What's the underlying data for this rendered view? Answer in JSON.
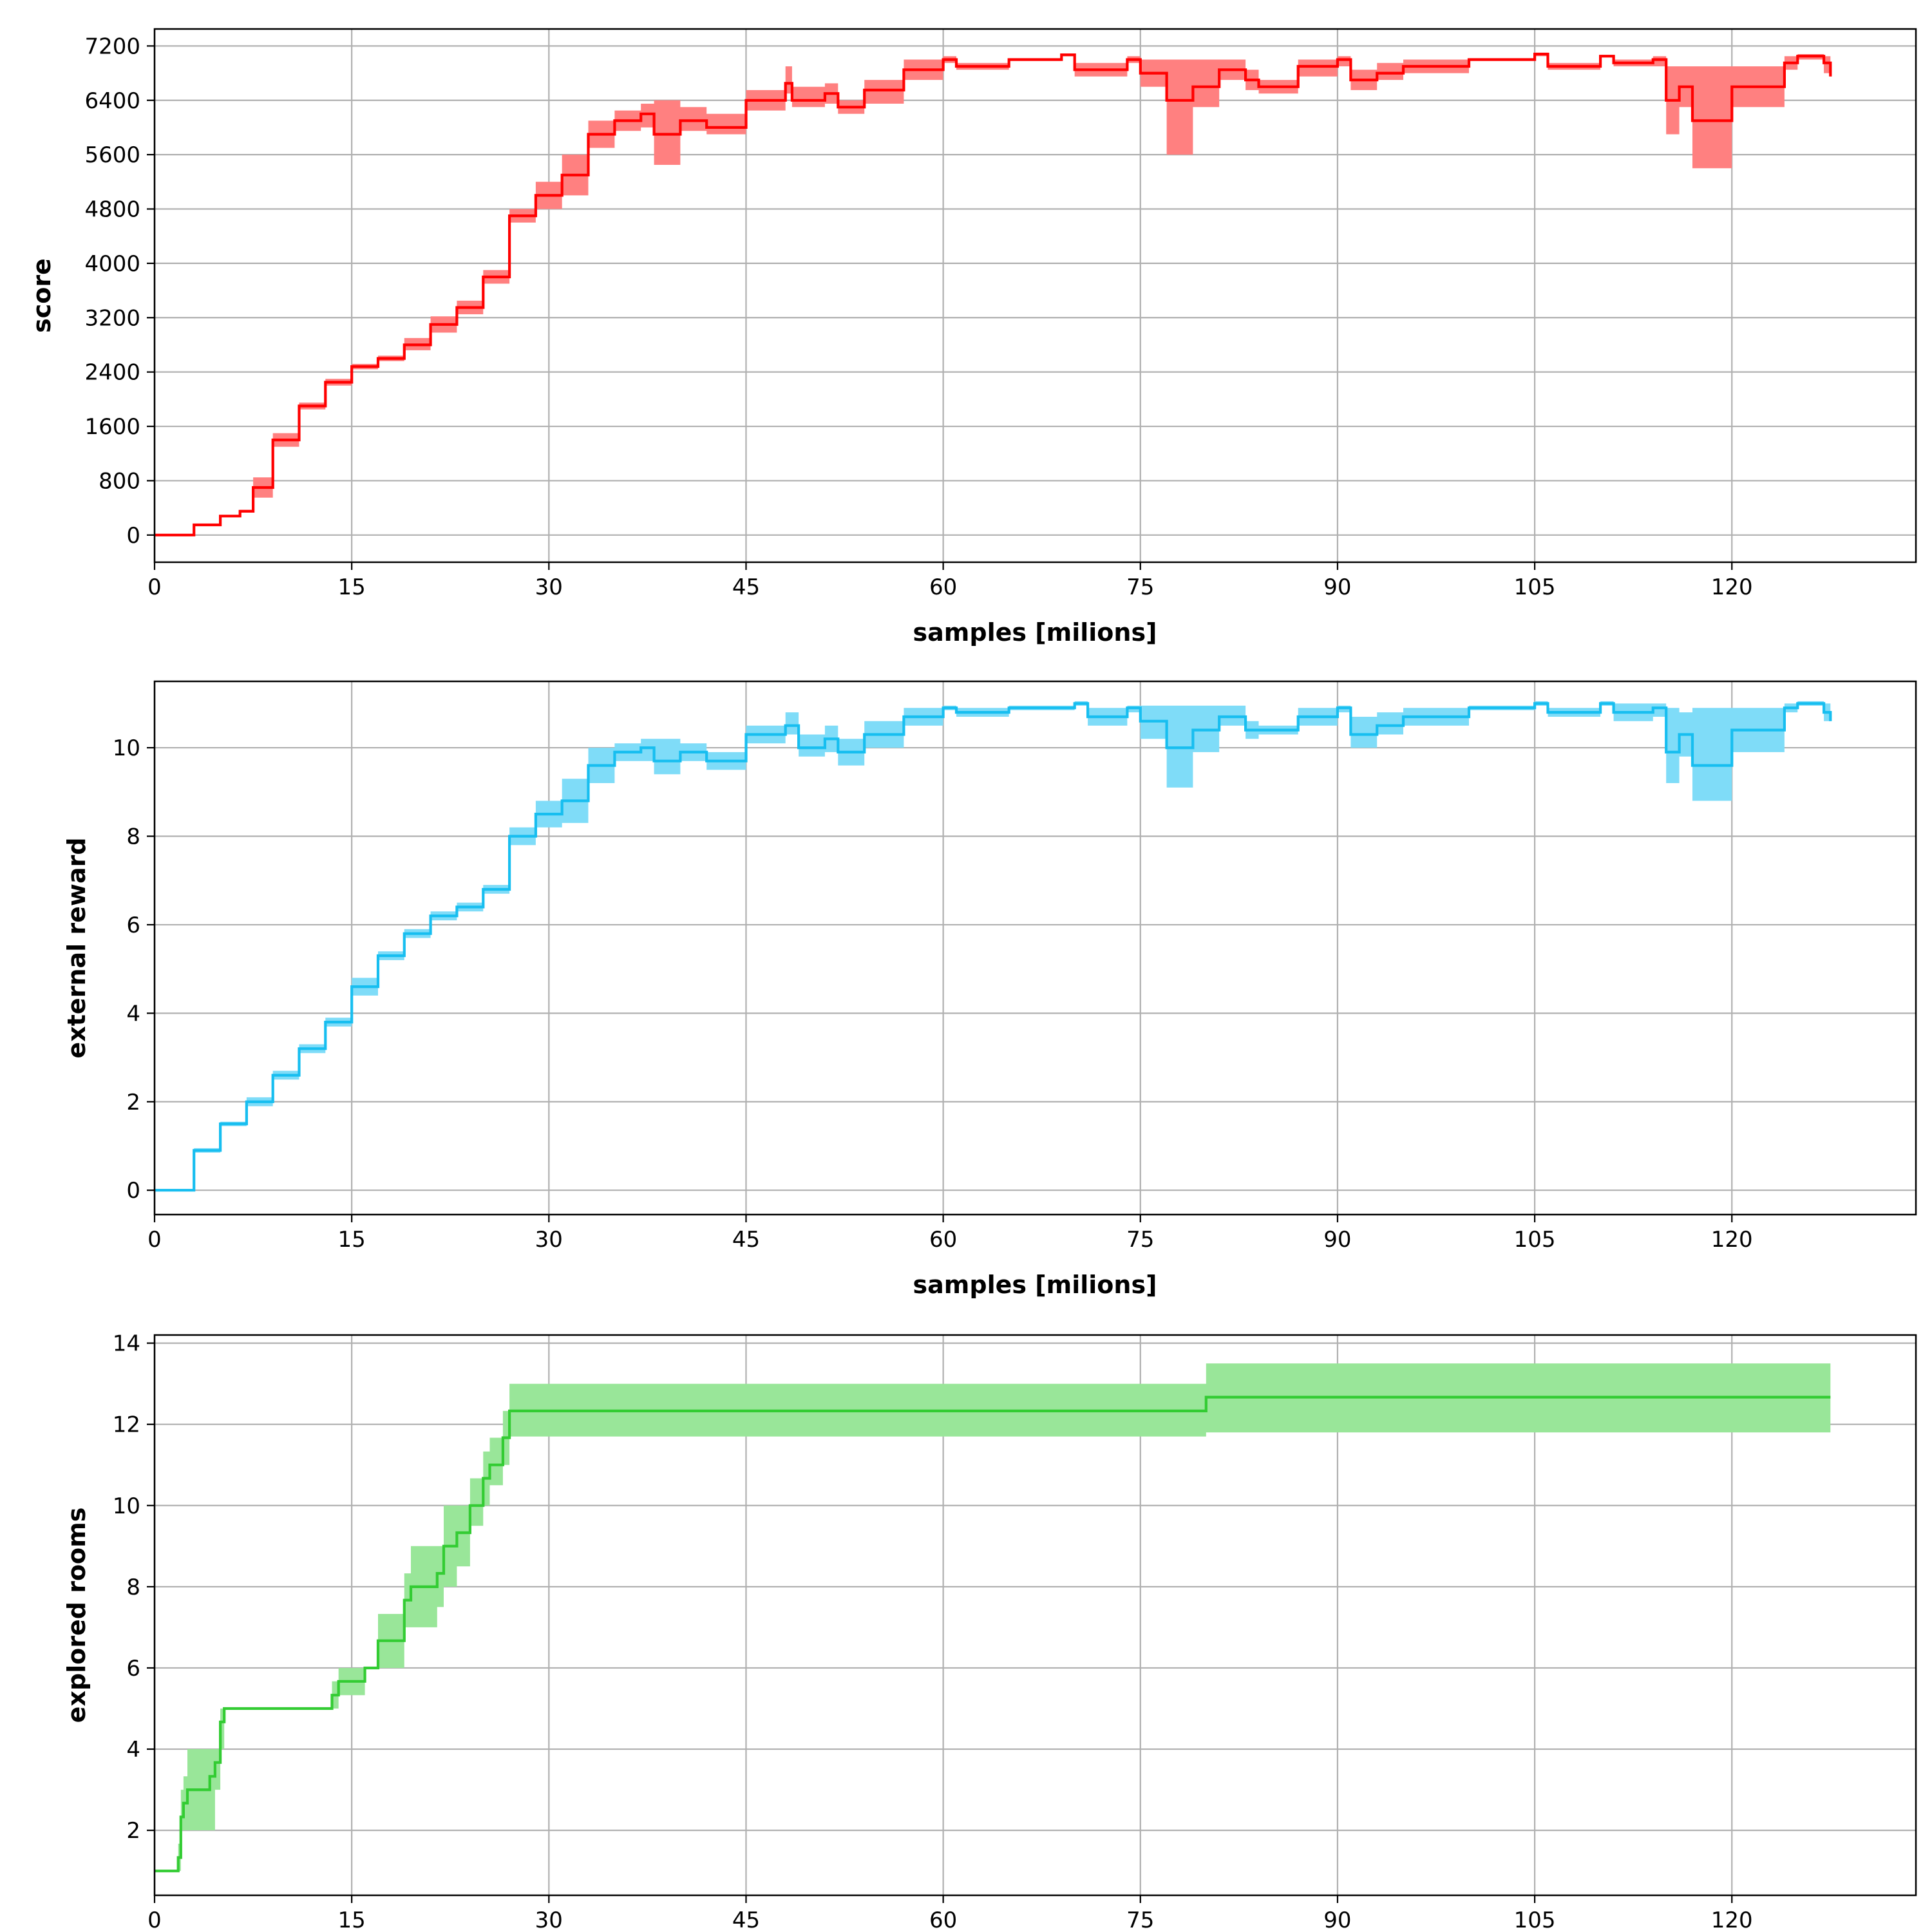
{
  "chart_data": [
    {
      "type": "line",
      "xlabel": "samples [milions]",
      "ylabel": "score",
      "xlim": [
        0,
        134
      ],
      "ylim": [
        -400,
        7450
      ],
      "xticks": [
        0,
        15,
        30,
        45,
        60,
        75,
        90,
        105,
        120
      ],
      "yticks": [
        0,
        800,
        1600,
        2400,
        3200,
        4000,
        4800,
        5600,
        6400,
        7200
      ],
      "grid": true,
      "color": "#ff0000",
      "band_color": "#ff8080",
      "series": [
        {
          "x": [
            0,
            1.5,
            3,
            5,
            6.5,
            7.5,
            9,
            11,
            13,
            15,
            17,
            19,
            21,
            23,
            25,
            27,
            29,
            31,
            33,
            35,
            37,
            38,
            40,
            42,
            45,
            48,
            48.5,
            51,
            52,
            54,
            57,
            60,
            61,
            65,
            69,
            70,
            74,
            75,
            77,
            79,
            81,
            83,
            84,
            87,
            90,
            91,
            93,
            95,
            100,
            105,
            106,
            110,
            111,
            114,
            115,
            116,
            117,
            120,
            124,
            125,
            127,
            127.5
          ],
          "y": [
            0,
            0,
            150,
            280,
            350,
            700,
            1400,
            1900,
            2250,
            2480,
            2600,
            2800,
            3100,
            3350,
            3800,
            4700,
            5000,
            5300,
            5900,
            6100,
            6200,
            5900,
            6100,
            6000,
            6400,
            6650,
            6400,
            6500,
            6300,
            6550,
            6850,
            7000,
            6900,
            7000,
            7070,
            6850,
            7000,
            6800,
            6400,
            6600,
            6850,
            6700,
            6600,
            6900,
            7000,
            6700,
            6800,
            6900,
            7000,
            7080,
            6900,
            7050,
            6950,
            7000,
            6400,
            6600,
            6100,
            6600,
            6950,
            7050,
            6950,
            6750
          ],
          "lower": [
            0,
            0,
            140,
            270,
            330,
            550,
            1300,
            1850,
            2200,
            2440,
            2560,
            2720,
            2980,
            3250,
            3700,
            4600,
            4800,
            5000,
            5700,
            5950,
            6000,
            5450,
            5950,
            5900,
            6250,
            6500,
            6300,
            6350,
            6200,
            6350,
            6700,
            6950,
            6850,
            6980,
            7050,
            6750,
            6950,
            6600,
            5600,
            6300,
            6700,
            6550,
            6500,
            6750,
            6900,
            6550,
            6700,
            6800,
            6980,
            7050,
            6850,
            7030,
            6900,
            6900,
            5900,
            6300,
            5400,
            6300,
            6850,
            7000,
            6800,
            6650
          ],
          "upper": [
            0,
            0,
            160,
            290,
            370,
            850,
            1500,
            1950,
            2300,
            2520,
            2640,
            2900,
            3220,
            3450,
            3900,
            4800,
            5200,
            5600,
            6100,
            6250,
            6350,
            6400,
            6300,
            6200,
            6550,
            6900,
            6600,
            6650,
            6400,
            6700,
            7000,
            7050,
            6950,
            7020,
            7090,
            6950,
            7050,
            7000,
            7000,
            7000,
            7000,
            6850,
            6700,
            7000,
            7050,
            6850,
            6950,
            7000,
            7020,
            7100,
            6950,
            7070,
            7000,
            7050,
            6900,
            6900,
            6900,
            6900,
            7050,
            7080,
            7050,
            6850
          ]
        }
      ]
    },
    {
      "type": "line",
      "xlabel": "samples [milions]",
      "ylabel": "external reward",
      "xlim": [
        0,
        134
      ],
      "ylim": [
        -0.55,
        11.5
      ],
      "xticks": [
        0,
        15,
        30,
        45,
        60,
        75,
        90,
        105,
        120
      ],
      "yticks": [
        0,
        2,
        4,
        6,
        8,
        10
      ],
      "grid": true,
      "color": "#17bef0",
      "band_color": "#7fdcf8",
      "series": [
        {
          "x": [
            0,
            1.5,
            3,
            5,
            7,
            9,
            11,
            13,
            15,
            17,
            19,
            21,
            23,
            25,
            27,
            29,
            31,
            33,
            35,
            37,
            38,
            40,
            42,
            45,
            48,
            49,
            51,
            52,
            54,
            57,
            60,
            61,
            65,
            70,
            71,
            74,
            75,
            77,
            79,
            81,
            83,
            84,
            87,
            90,
            91,
            93,
            95,
            100,
            105,
            106,
            110,
            111,
            114,
            115,
            116,
            117,
            120,
            124,
            125,
            127,
            127.5
          ],
          "y": [
            0,
            0,
            0.9,
            1.5,
            2.0,
            2.6,
            3.2,
            3.8,
            4.6,
            5.3,
            5.8,
            6.2,
            6.4,
            6.8,
            8.0,
            8.5,
            8.8,
            9.6,
            9.9,
            10.0,
            9.7,
            9.9,
            9.7,
            10.3,
            10.5,
            10.0,
            10.2,
            9.9,
            10.3,
            10.7,
            10.9,
            10.8,
            10.9,
            11.0,
            10.7,
            10.9,
            10.6,
            10.0,
            10.4,
            10.7,
            10.4,
            10.4,
            10.7,
            10.9,
            10.3,
            10.5,
            10.7,
            10.9,
            11.0,
            10.8,
            11.0,
            10.8,
            10.9,
            9.9,
            10.3,
            9.6,
            10.4,
            10.9,
            11.0,
            10.8,
            10.6
          ],
          "lower": [
            0,
            0,
            0.85,
            1.45,
            1.9,
            2.5,
            3.1,
            3.7,
            4.4,
            5.2,
            5.7,
            6.1,
            6.3,
            6.7,
            7.8,
            8.2,
            8.3,
            9.2,
            9.7,
            9.7,
            9.4,
            9.7,
            9.5,
            10.1,
            10.3,
            9.8,
            9.9,
            9.6,
            10.0,
            10.5,
            10.85,
            10.7,
            10.85,
            10.95,
            10.5,
            10.8,
            10.2,
            9.1,
            9.9,
            10.5,
            10.2,
            10.3,
            10.5,
            10.8,
            10.0,
            10.3,
            10.5,
            10.85,
            10.95,
            10.7,
            10.95,
            10.6,
            10.7,
            9.2,
            9.8,
            8.8,
            9.9,
            10.8,
            10.95,
            10.6,
            10.4
          ],
          "upper": [
            0,
            0,
            0.95,
            1.55,
            2.1,
            2.7,
            3.3,
            3.9,
            4.8,
            5.4,
            5.9,
            6.3,
            6.5,
            6.9,
            8.2,
            8.8,
            9.3,
            10.0,
            10.1,
            10.2,
            10.2,
            10.1,
            9.9,
            10.5,
            10.8,
            10.3,
            10.5,
            10.2,
            10.6,
            10.9,
            10.95,
            10.9,
            10.95,
            11.05,
            10.9,
            10.95,
            10.95,
            10.95,
            10.95,
            10.95,
            10.6,
            10.5,
            10.9,
            10.95,
            10.7,
            10.8,
            10.9,
            10.95,
            11.05,
            10.9,
            11.05,
            11.0,
            11.0,
            10.9,
            10.8,
            10.9,
            10.9,
            11.0,
            11.05,
            11.0,
            10.8
          ]
        }
      ]
    },
    {
      "type": "line",
      "xlabel": "",
      "ylabel": "explored rooms",
      "xlim": [
        0,
        134
      ],
      "ylim": [
        0.4,
        14.2
      ],
      "xticks": [
        0,
        15,
        30,
        45,
        60,
        75,
        90,
        105,
        120
      ],
      "yticks": [
        2,
        4,
        6,
        8,
        10,
        12,
        14
      ],
      "grid": true,
      "color": "#33cc33",
      "band_color": "#99e699",
      "series": [
        {
          "x": [
            0,
            1.8,
            2.0,
            2.2,
            2.5,
            4.2,
            4.6,
            5.0,
            5.3,
            13.5,
            14.0,
            15.0,
            16.0,
            17.0,
            19.0,
            19.5,
            21.5,
            22.0,
            23.0,
            24.0,
            25.0,
            25.5,
            26.5,
            27.0,
            80.0,
            127.5
          ],
          "y": [
            1,
            1.33,
            2.33,
            2.67,
            3.0,
            3.33,
            3.67,
            4.67,
            5.0,
            5.33,
            5.67,
            5.67,
            6.0,
            6.67,
            7.67,
            8.0,
            8.33,
            9.0,
            9.33,
            10.0,
            10.67,
            11.0,
            11.67,
            12.33,
            12.67,
            12.67
          ],
          "lower": [
            1,
            1,
            2,
            2,
            2,
            2,
            3,
            4,
            5,
            5,
            5.33,
            5.33,
            6,
            6,
            7,
            7,
            7.5,
            8,
            8.5,
            9.5,
            10,
            10.5,
            11,
            11.7,
            11.8,
            11.8
          ],
          "upper": [
            1,
            1.67,
            3,
            3.33,
            4,
            4,
            4,
            5,
            5,
            5.67,
            6,
            6,
            6,
            7.33,
            8.33,
            9,
            9,
            10,
            10,
            10.67,
            11.33,
            11.67,
            12.33,
            13,
            13.5,
            13.5
          ]
        }
      ]
    }
  ]
}
